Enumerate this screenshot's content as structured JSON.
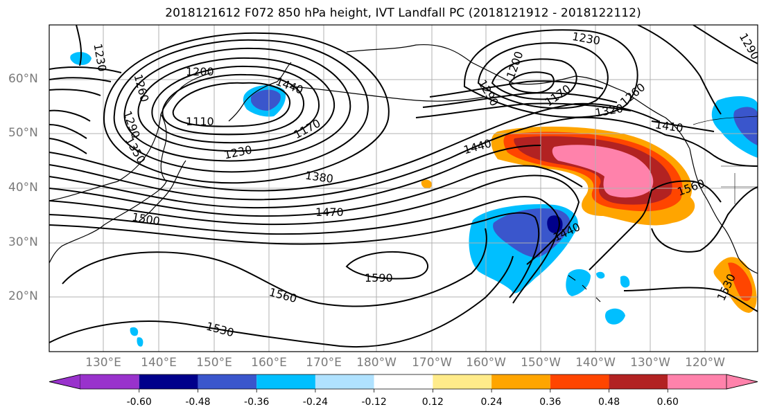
{
  "title": "2018121612 F072 850 hPa height, IVT Landfall PC (2018121912 - 2018122112)",
  "lat_labels": [
    "60°N",
    "50°N",
    "40°N",
    "30°N",
    "20°N"
  ],
  "lon_labels": [
    "130°E",
    "140°E",
    "150°E",
    "160°E",
    "170°E",
    "180°W",
    "170°W",
    "160°W",
    "150°W",
    "140°W",
    "130°W",
    "120°W"
  ],
  "contour_labels": [
    "1230",
    "1230",
    "1200",
    "1200",
    "1260",
    "1440",
    "1290",
    "1110",
    "1170",
    "1170",
    "1260",
    "1290",
    "1350",
    "1320",
    "1230",
    "1440",
    "1410",
    "1290",
    "1380",
    "1560",
    "1470",
    "1500",
    "1440",
    "1590",
    "1560",
    "1530",
    "1530"
  ],
  "colorbar": {
    "ticks": [
      "-0.60",
      "-0.48",
      "-0.36",
      "-0.24",
      "-0.12",
      "0.12",
      "0.24",
      "0.36",
      "0.48",
      "0.60"
    ],
    "colors": [
      "#9932cc",
      "#00008b",
      "#3a56cc",
      "#00bfff",
      "#b0e2ff",
      "#ffffff",
      "#ffeb8a",
      "#ffa500",
      "#ff4500",
      "#b22222",
      "#ff82ab",
      "#ff82ab"
    ]
  }
}
